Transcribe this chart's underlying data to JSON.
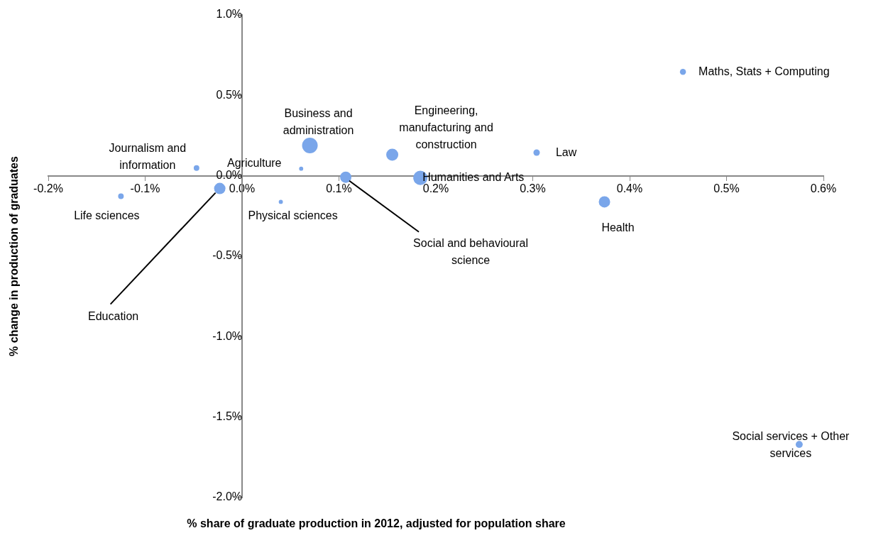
{
  "chart_data": {
    "type": "bubble",
    "xlabel": "% share of graduate production in 2012, adjusted for population share",
    "ylabel": "% change in production of graduates",
    "series": [
      {
        "color": "#7aa6ea",
        "x": [
          -0.047,
          0.061,
          0.07,
          -0.125,
          0.04,
          -0.023,
          0.107,
          0.155,
          0.304,
          0.184,
          0.374,
          0.455,
          0.575
        ],
        "values": [
          0.048,
          0.044,
          0.188,
          -0.127,
          -0.162,
          -0.079,
          -0.009,
          0.131,
          0.144,
          -0.013,
          -0.162,
          0.646,
          -1.67
        ],
        "sizes": [
          0.13,
          0.07,
          1,
          0.13,
          0.07,
          0.53,
          0.53,
          0.6,
          0.17,
          0.83,
          0.53,
          0.15,
          0.2
        ]
      }
    ],
    "annotations": [
      {
        "text": "Journalism and information",
        "x": -0.047,
        "y": 0.048
      },
      {
        "text": "Agriculture",
        "x": 0.061,
        "y": 0.044
      },
      {
        "text": "Business and administration",
        "x": 0.07,
        "y": 0.188
      },
      {
        "text": "Life sciences",
        "x": -0.125,
        "y": -0.127
      },
      {
        "text": "Physical sciences",
        "x": 0.04,
        "y": -0.162
      },
      {
        "text": "Education",
        "x": -0.023,
        "y": -0.079
      },
      {
        "text": "Social and behavioural science",
        "x": 0.107,
        "y": -0.009
      },
      {
        "text": "Engineering, manufacturing and construction",
        "x": 0.155,
        "y": 0.131
      },
      {
        "text": "Law",
        "x": 0.304,
        "y": 0.144
      },
      {
        "text": "Humanities and Arts",
        "x": 0.184,
        "y": -0.013
      },
      {
        "text": "Health",
        "x": 0.374,
        "y": -0.162
      },
      {
        "text": "Maths, Stats + Computing",
        "x": 0.455,
        "y": 0.646
      },
      {
        "text": "Social services + Other services",
        "x": 0.575,
        "y": -1.67
      }
    ],
    "xlim": [
      -0.2,
      0.6
    ],
    "xticks": [
      {
        "value": -0.2,
        "label": "-0.2%"
      },
      {
        "value": -0.1,
        "label": "-0.1%"
      },
      {
        "value": 0,
        "label": "0.0%"
      },
      {
        "value": 0.1,
        "label": "0.1%"
      },
      {
        "value": 0.2,
        "label": "0.2%"
      },
      {
        "value": 0.3,
        "label": "0.3%"
      },
      {
        "value": 0.4,
        "label": "0.4%"
      },
      {
        "value": 0.5,
        "label": "0.5%"
      },
      {
        "value": 0.6,
        "label": "0.6%"
      }
    ],
    "ylim": [
      -2.0,
      1.0
    ],
    "yticks": [
      {
        "value": -2.0,
        "label": "-2.0%"
      },
      {
        "value": -1.5,
        "label": "-1.5%"
      },
      {
        "value": -1.0,
        "label": "-1.0%"
      },
      {
        "value": -0.5,
        "label": "-0.5%"
      },
      {
        "value": 0,
        "label": "0.0%"
      },
      {
        "value": 0.5,
        "label": "0.5%"
      },
      {
        "value": 1.0,
        "label": "1.0%"
      }
    ],
    "grid": false,
    "legend": false,
    "marker": "circle"
  }
}
